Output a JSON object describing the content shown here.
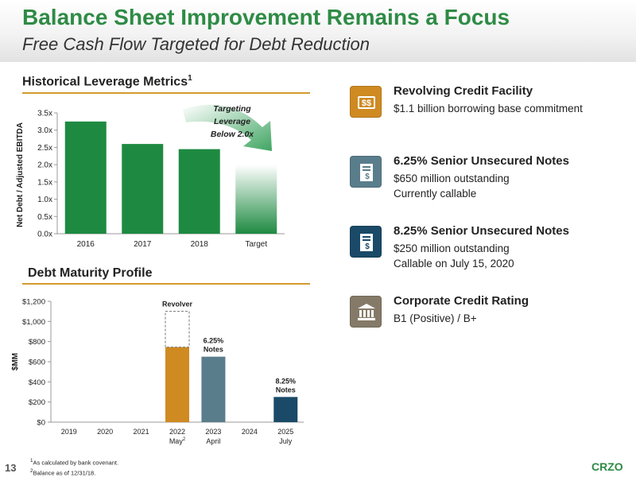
{
  "header": {
    "title": "Balance Sheet Improvement Remains a Focus",
    "subtitle": "Free Cash Flow Targeted for Debt Reduction"
  },
  "leverage": {
    "heading": "Historical Leverage Metrics",
    "heading_sup": "1",
    "annotation": [
      "Targeting",
      "Leverage",
      "Below 2.0x"
    ]
  },
  "maturity": {
    "heading": "Debt Maturity Profile"
  },
  "chart_data": [
    {
      "type": "bar",
      "title": "Historical Leverage Metrics",
      "categories": [
        "2016",
        "2017",
        "2018",
        "Target"
      ],
      "values": [
        3.25,
        2.6,
        2.45,
        2.0
      ],
      "ylabel": "Net Debt / Adjusted EBITDA",
      "ylim": [
        0,
        3.5
      ],
      "yticks": [
        "0.0x",
        "0.5x",
        "1.0x",
        "1.5x",
        "2.0x",
        "2.5x",
        "3.0x",
        "3.5x"
      ],
      "grid": false,
      "colors": {
        "bar": "#1e8a41",
        "target_top": "#ffffff",
        "target_bottom": "#1e8a41"
      }
    },
    {
      "type": "bar",
      "title": "Debt Maturity Profile",
      "categories": [
        "2019",
        "2020",
        "2021",
        "2022",
        "2023",
        "2024",
        "2025"
      ],
      "sublabels": [
        "",
        "",
        "",
        "May",
        "April",
        "",
        "July"
      ],
      "sublabel_sup": [
        "",
        "",
        "",
        "2",
        "",
        "",
        ""
      ],
      "series": [
        {
          "name": "Revolver",
          "values": [
            0,
            0,
            0,
            745,
            0,
            0,
            0
          ],
          "color": "#cf8a22"
        },
        {
          "name": "Revolver",
          "values": [
            0,
            0,
            0,
            355,
            0,
            0,
            0
          ],
          "color": "none",
          "style": "dashed"
        },
        {
          "name": "6.25% Notes",
          "values": [
            0,
            0,
            0,
            0,
            650,
            0,
            0
          ],
          "color": "#5a7d8c"
        },
        {
          "name": "8.25% Notes",
          "values": [
            0,
            0,
            0,
            0,
            0,
            0,
            250
          ],
          "color": "#1a4a68"
        }
      ],
      "bar_labels": [
        {
          "category": "2022",
          "lines": [
            "Revolver"
          ]
        },
        {
          "category": "2023",
          "lines": [
            "6.25%",
            "Notes"
          ]
        },
        {
          "category": "2025",
          "lines": [
            "8.25%",
            "Notes"
          ]
        }
      ],
      "ylabel": "$MM",
      "ylim": [
        0,
        1200
      ],
      "yticks": [
        "$0",
        "$200",
        "$400",
        "$600",
        "$800",
        "$1,000",
        "$1,200"
      ],
      "grid": false
    }
  ],
  "facility_items": [
    {
      "icon": "dollar-bills-icon",
      "color": "#cf8a22",
      "title": "Revolving Credit Facility",
      "lines": [
        "$1.1 billion borrowing base commitment"
      ]
    },
    {
      "icon": "document-dollar-icon",
      "color": "#5a7d8c",
      "title": "6.25% Senior Unsecured Notes",
      "lines": [
        "$650 million outstanding",
        "Currently callable"
      ]
    },
    {
      "icon": "document-dollar-icon",
      "color": "#1a4a68",
      "title": "8.25% Senior Unsecured Notes",
      "lines": [
        "$250 million outstanding",
        "Callable on July 15, 2020"
      ]
    },
    {
      "icon": "bank-building-icon",
      "color": "#857a68",
      "title": "Corporate Credit Rating",
      "lines": [
        "B1 (Positive) / B+"
      ]
    }
  ],
  "footnotes": [
    "As calculated by bank covenant.",
    "Balance as of 12/31/18."
  ],
  "footnote_marks": [
    "1",
    "2"
  ],
  "page_number": "13",
  "brand": "CRZO"
}
